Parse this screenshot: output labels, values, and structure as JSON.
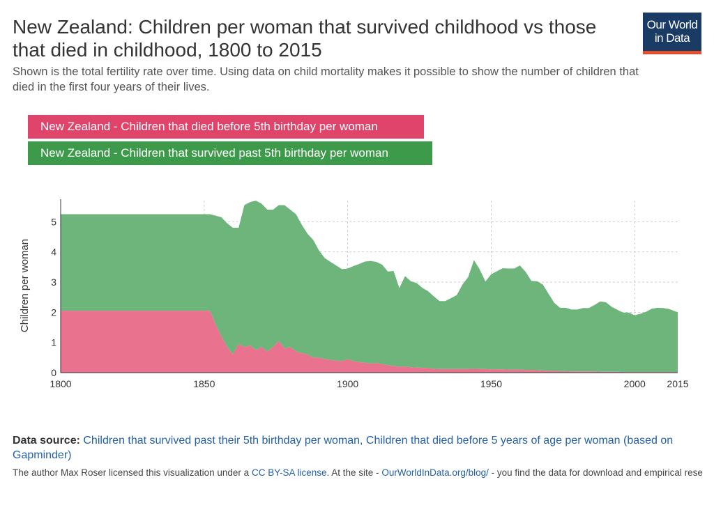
{
  "header": {
    "title": "New Zealand: Children per woman that survived childhood vs those that died in childhood, 1800 to 2015",
    "subtitle": "Shown is the total fertility rate over time. Using data on child mortality makes it possible to show the number of children that died in the first four years of their lives.",
    "logo_line1": "Our World",
    "logo_line2": "in Data"
  },
  "colors": {
    "died": "#e9738f",
    "survived": "#6db57a",
    "died_legend": "#e0446a",
    "survived_legend": "#3e9a4b"
  },
  "chart_data": {
    "type": "area",
    "stacked": true,
    "title": "New Zealand: Children per woman that survived childhood vs those that died in childhood, 1800 to 2015",
    "xlabel": "",
    "ylabel": "Children per woman",
    "xlim": [
      1800,
      2015
    ],
    "ylim": [
      0,
      5.7
    ],
    "xticks": [
      1800,
      1850,
      1900,
      1950,
      2000,
      2015
    ],
    "yticks": [
      0,
      1,
      2,
      3,
      4,
      5
    ],
    "legend_position": "top-left",
    "x": [
      1800,
      1852,
      1854,
      1856,
      1858,
      1860,
      1862,
      1864,
      1866,
      1868,
      1870,
      1872,
      1874,
      1876,
      1878,
      1880,
      1882,
      1884,
      1886,
      1888,
      1890,
      1892,
      1894,
      1896,
      1898,
      1900,
      1902,
      1904,
      1906,
      1908,
      1910,
      1912,
      1914,
      1916,
      1918,
      1920,
      1922,
      1924,
      1926,
      1928,
      1930,
      1932,
      1934,
      1936,
      1938,
      1940,
      1942,
      1944,
      1946,
      1948,
      1950,
      1952,
      1954,
      1956,
      1958,
      1960,
      1962,
      1964,
      1966,
      1968,
      1970,
      1972,
      1974,
      1976,
      1978,
      1980,
      1982,
      1984,
      1986,
      1988,
      1990,
      1992,
      1994,
      1996,
      1998,
      2000,
      2002,
      2004,
      2006,
      2008,
      2010,
      2012,
      2015
    ],
    "series": [
      {
        "name": "New Zealand - Children that died before 5th birthday per woman",
        "values": [
          2.05,
          2.05,
          1.6,
          1.2,
          0.85,
          0.6,
          0.95,
          0.85,
          0.9,
          0.75,
          0.85,
          0.7,
          0.85,
          1.05,
          0.8,
          0.85,
          0.7,
          0.65,
          0.6,
          0.5,
          0.5,
          0.45,
          0.42,
          0.4,
          0.38,
          0.45,
          0.38,
          0.35,
          0.33,
          0.3,
          0.32,
          0.28,
          0.25,
          0.22,
          0.2,
          0.2,
          0.18,
          0.17,
          0.16,
          0.15,
          0.13,
          0.12,
          0.12,
          0.12,
          0.12,
          0.12,
          0.12,
          0.13,
          0.12,
          0.12,
          0.11,
          0.11,
          0.11,
          0.1,
          0.1,
          0.1,
          0.09,
          0.09,
          0.08,
          0.07,
          0.06,
          0.06,
          0.05,
          0.05,
          0.04,
          0.04,
          0.04,
          0.04,
          0.04,
          0.03,
          0.03,
          0.03,
          0.03,
          0.02,
          0.02,
          0.02,
          0.02,
          0.02,
          0.02,
          0.02,
          0.02,
          0.02,
          0.02
        ]
      },
      {
        "name": "New Zealand - Children that survived past 5th birthday per woman",
        "values": [
          3.2,
          3.2,
          3.6,
          3.95,
          4.1,
          4.2,
          3.85,
          4.7,
          4.75,
          4.95,
          4.75,
          4.7,
          4.55,
          4.5,
          4.75,
          4.55,
          4.55,
          4.25,
          4.0,
          3.9,
          3.55,
          3.35,
          3.25,
          3.15,
          3.05,
          3.0,
          3.15,
          3.25,
          3.35,
          3.4,
          3.35,
          3.3,
          3.1,
          3.15,
          2.6,
          3.0,
          2.85,
          2.8,
          2.65,
          2.55,
          2.4,
          2.25,
          2.25,
          2.35,
          2.45,
          2.8,
          3.05,
          3.6,
          3.3,
          2.9,
          3.15,
          3.25,
          3.35,
          3.35,
          3.35,
          3.45,
          3.25,
          2.95,
          2.95,
          2.85,
          2.55,
          2.25,
          2.1,
          2.1,
          2.05,
          2.05,
          2.1,
          2.1,
          2.2,
          2.33,
          2.3,
          2.15,
          2.05,
          1.97,
          1.97,
          1.88,
          1.93,
          2.0,
          2.1,
          2.13,
          2.12,
          2.09,
          1.98
        ]
      }
    ]
  },
  "footer": {
    "source_label": "Data source:",
    "source_text": "Children that survived past their 5th birthday per woman, Children that died before 5 years of age per woman (based on Gapminder)",
    "license_prefix": "The author Max Roser licensed this visualization under a",
    "license_link": "CC BY-SA license",
    "license_mid": ". At the site -",
    "site_link": "OurWorldInData.org/blog/",
    "license_suffix": "- you find the data for download and empirical research on this topic that puts this visualization in context."
  }
}
